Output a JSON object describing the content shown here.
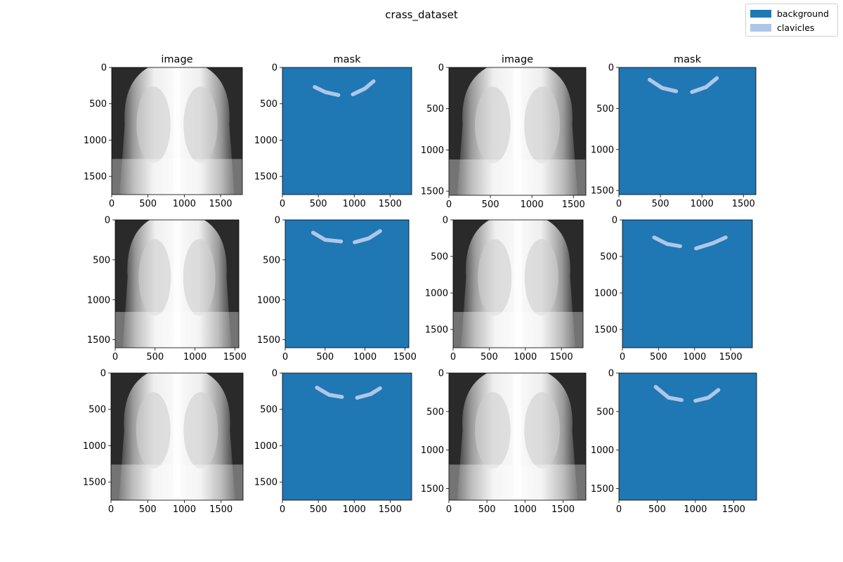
{
  "figure": {
    "title": "crass_dataset"
  },
  "legend": {
    "entries": [
      {
        "label": "background",
        "color": "#1f77b4"
      },
      {
        "label": "clavicles",
        "color": "#aec7e8"
      }
    ]
  },
  "colors": {
    "background": "#1f77b4",
    "clavicles": "#aec7e8",
    "xray_dark": "#2a2a2a",
    "xray_bright": "#f5f5f5"
  },
  "chart_data": [
    {
      "type": "image",
      "title": "image",
      "xlim": [
        0,
        1800
      ],
      "ylim": [
        1750,
        0
      ],
      "xticks": [
        0,
        500,
        1000,
        1500
      ],
      "yticks": [
        0,
        500,
        1000,
        1500
      ]
    },
    {
      "type": "heatmap",
      "title": "mask",
      "xlim": [
        0,
        1800
      ],
      "ylim": [
        1750,
        0
      ],
      "xticks": [
        0,
        500,
        1000,
        1500
      ],
      "yticks": [
        0,
        500,
        1000,
        1500
      ],
      "regions": [
        {
          "label": "clavicles",
          "side": "left",
          "points": [
            [
              450,
              270
            ],
            [
              600,
              340
            ],
            [
              780,
              380
            ]
          ]
        },
        {
          "label": "clavicles",
          "side": "right",
          "points": [
            [
              980,
              370
            ],
            [
              1150,
              290
            ],
            [
              1270,
              190
            ]
          ]
        }
      ]
    },
    {
      "type": "image",
      "title": "image",
      "xlim": [
        0,
        1650
      ],
      "ylim": [
        1550,
        0
      ],
      "xticks": [
        0,
        500,
        1000,
        1500
      ],
      "yticks": [
        0,
        500,
        1000,
        1500
      ]
    },
    {
      "type": "heatmap",
      "title": "mask",
      "xlim": [
        0,
        1650
      ],
      "ylim": [
        1550,
        0
      ],
      "xticks": [
        0,
        500,
        1000,
        1500
      ],
      "yticks": [
        0,
        500,
        1000,
        1500
      ],
      "regions": [
        {
          "label": "clavicles",
          "side": "left",
          "points": [
            [
              370,
              150
            ],
            [
              520,
              250
            ],
            [
              690,
              290
            ]
          ]
        },
        {
          "label": "clavicles",
          "side": "right",
          "points": [
            [
              880,
              300
            ],
            [
              1050,
              240
            ],
            [
              1180,
              130
            ]
          ]
        }
      ]
    },
    {
      "type": "image",
      "title": "",
      "xlim": [
        0,
        1550
      ],
      "ylim": [
        1600,
        0
      ],
      "xticks": [
        0,
        500,
        1000,
        1500
      ],
      "yticks": [
        0,
        500,
        1000,
        1500
      ]
    },
    {
      "type": "heatmap",
      "title": "",
      "xlim": [
        0,
        1550
      ],
      "ylim": [
        1600,
        0
      ],
      "xticks": [
        0,
        500,
        1000,
        1500
      ],
      "yticks": [
        0,
        500,
        1000,
        1500
      ],
      "regions": [
        {
          "label": "clavicles",
          "side": "left",
          "points": [
            [
              350,
              160
            ],
            [
              500,
              250
            ],
            [
              700,
              270
            ]
          ]
        },
        {
          "label": "clavicles",
          "side": "right",
          "points": [
            [
              870,
              280
            ],
            [
              1050,
              230
            ],
            [
              1190,
              140
            ]
          ]
        }
      ]
    },
    {
      "type": "image",
      "title": "",
      "xlim": [
        0,
        1800
      ],
      "ylim": [
        1750,
        0
      ],
      "xticks": [
        0,
        500,
        1000,
        1500
      ],
      "yticks": [
        0,
        500,
        1000,
        1500
      ]
    },
    {
      "type": "heatmap",
      "title": "",
      "xlim": [
        0,
        1800
      ],
      "ylim": [
        1750,
        0
      ],
      "xticks": [
        0,
        500,
        1000,
        1500
      ],
      "yticks": [
        0,
        500,
        1000,
        1500
      ],
      "regions": [
        {
          "label": "clavicles",
          "side": "left",
          "points": [
            [
              440,
              240
            ],
            [
              620,
              330
            ],
            [
              800,
              360
            ]
          ]
        },
        {
          "label": "clavicles",
          "side": "right",
          "points": [
            [
              1020,
              390
            ],
            [
              1250,
              320
            ],
            [
              1430,
              240
            ]
          ]
        }
      ]
    },
    {
      "type": "image",
      "title": "",
      "xlim": [
        0,
        1800
      ],
      "ylim": [
        1750,
        0
      ],
      "xticks": [
        0,
        500,
        1000,
        1500
      ],
      "yticks": [
        0,
        500,
        1000,
        1500
      ]
    },
    {
      "type": "heatmap",
      "title": "",
      "xlim": [
        0,
        1800
      ],
      "ylim": [
        1750,
        0
      ],
      "xticks": [
        0,
        500,
        1000,
        1500
      ],
      "yticks": [
        0,
        500,
        1000,
        1500
      ],
      "regions": [
        {
          "label": "clavicles",
          "side": "left",
          "points": [
            [
              480,
              200
            ],
            [
              650,
              300
            ],
            [
              830,
              330
            ]
          ]
        },
        {
          "label": "clavicles",
          "side": "right",
          "points": [
            [
              1040,
              340
            ],
            [
              1230,
              290
            ],
            [
              1360,
              210
            ]
          ]
        }
      ]
    },
    {
      "type": "image",
      "title": "",
      "xlim": [
        0,
        1800
      ],
      "ylim": [
        1650,
        0
      ],
      "xticks": [
        0,
        500,
        1000,
        1500
      ],
      "yticks": [
        0,
        500,
        1000,
        1500
      ]
    },
    {
      "type": "heatmap",
      "title": "",
      "xlim": [
        0,
        1800
      ],
      "ylim": [
        1650,
        0
      ],
      "xticks": [
        0,
        500,
        1000,
        1500
      ],
      "yticks": [
        0,
        500,
        1000,
        1500
      ],
      "regions": [
        {
          "label": "clavicles",
          "side": "left",
          "points": [
            [
              480,
              180
            ],
            [
              650,
              320
            ],
            [
              820,
              350
            ]
          ]
        },
        {
          "label": "clavicles",
          "side": "right",
          "points": [
            [
              1000,
              360
            ],
            [
              1170,
              320
            ],
            [
              1300,
              220
            ]
          ]
        }
      ]
    }
  ]
}
